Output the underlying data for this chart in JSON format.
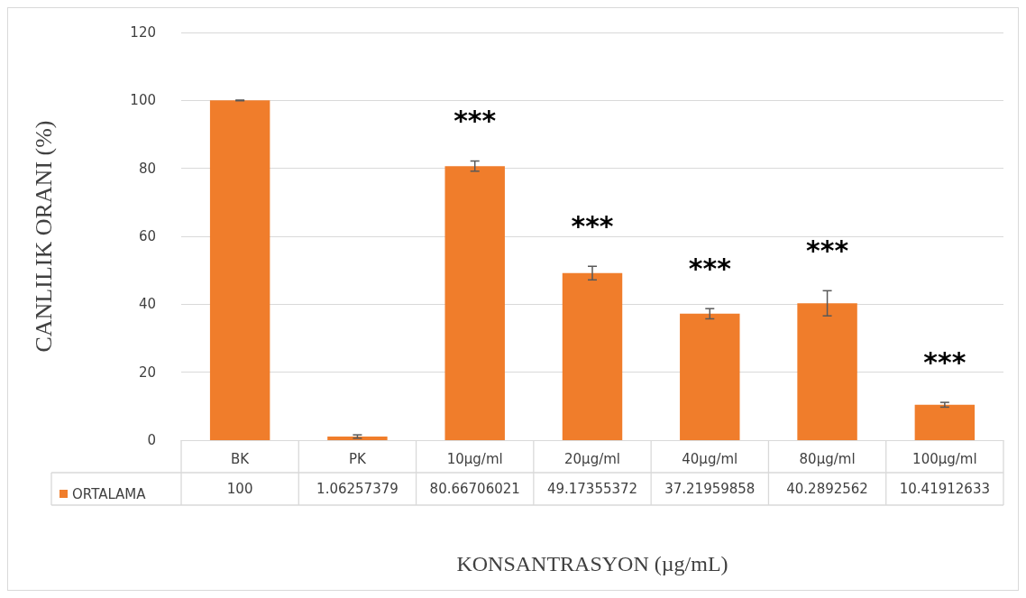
{
  "chart_data": {
    "type": "bar",
    "xlabel": "KONSANTRASYON (µg/mL)",
    "ylabel": "CANLILIK ORANI (%)",
    "categories": [
      "BK",
      "PK",
      "10µg/ml",
      "20µg/ml",
      "40µg/ml",
      "80µg/ml",
      "100µg/ml"
    ],
    "series": [
      {
        "name": "ORTALAMA",
        "color": "#f07d2b",
        "values": [
          100,
          1.06257379,
          80.66706021,
          49.17355372,
          37.21959858,
          40.2892562,
          10.41912633
        ],
        "errors": [
          0.1,
          0.5,
          1.5,
          2,
          1.5,
          3.7,
          0.7
        ]
      }
    ],
    "ylim": [
      0,
      120
    ],
    "yticks": [
      0,
      20,
      40,
      60,
      80,
      100,
      120
    ],
    "grid": "y",
    "legend": "bottom left",
    "data_labels": true,
    "annotations": [
      "***",
      "***",
      "***",
      "***",
      "***"
    ]
  }
}
